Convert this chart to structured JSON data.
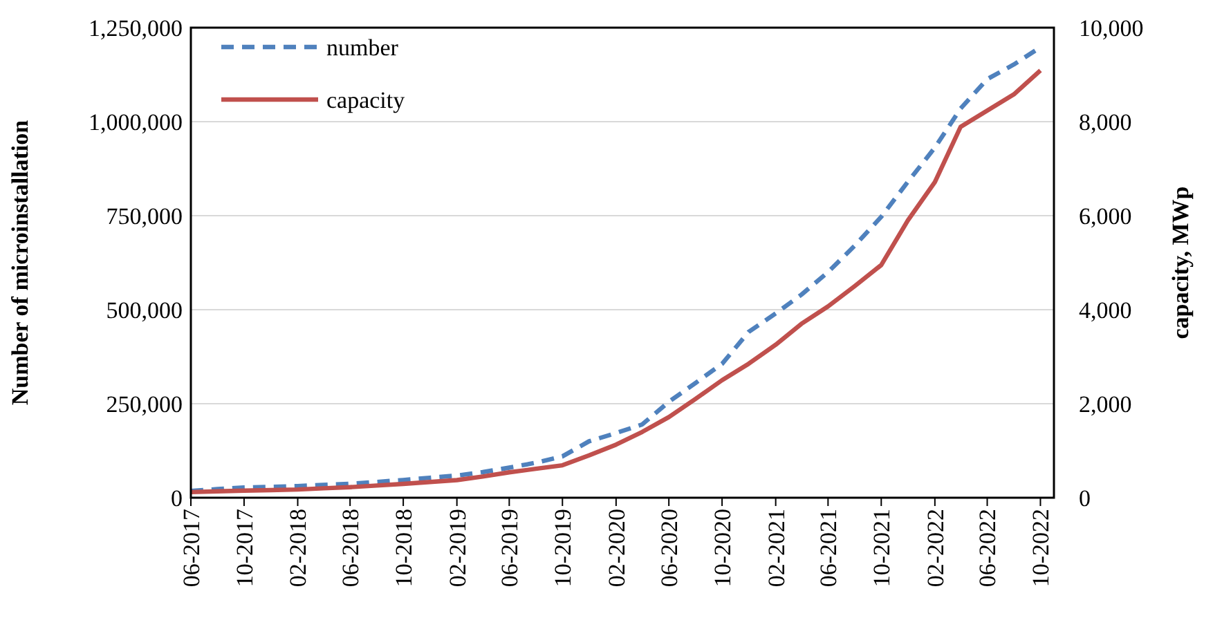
{
  "chart_data": {
    "type": "line",
    "xlabel": null,
    "ylabel": "Number of microinstallation",
    "y2label": "capacity, MWp",
    "x": [
      "2017-06",
      "2017-08",
      "2017-10",
      "2017-12",
      "2018-02",
      "2018-04",
      "2018-06",
      "2018-08",
      "2018-10",
      "2018-12",
      "2019-02",
      "2019-04",
      "2019-06",
      "2019-08",
      "2019-10",
      "2019-12",
      "2020-02",
      "2020-04",
      "2020-06",
      "2020-08",
      "2020-10",
      "2020-12",
      "2021-02",
      "2021-04",
      "2021-06",
      "2021-08",
      "2021-10",
      "2021-12",
      "2022-02",
      "2022-04",
      "2022-06",
      "2022-08",
      "2022-10"
    ],
    "series": [
      {
        "name": "number",
        "color": "#4f81bd",
        "line_style": "dashed",
        "values": [
          18000,
          23000,
          27000,
          29000,
          31000,
          34000,
          37000,
          42000,
          47000,
          53000,
          59000,
          68000,
          80000,
          93000,
          110000,
          150000,
          172000,
          195000,
          255000,
          305000,
          356000,
          441000,
          490000,
          540000,
          600000,
          670000,
          747000,
          840000,
          931000,
          1035000,
          1113000,
          1152000,
          1198000
        ]
      },
      {
        "name": "capacity",
        "color": "#c0504d",
        "line_style": "solid",
        "axis": "y2",
        "values": [
          120,
          135,
          150,
          162,
          175,
          200,
          225,
          260,
          295,
          335,
          375,
          450,
          540,
          615,
          690,
          900,
          1130,
          1400,
          1715,
          2100,
          2500,
          2850,
          3255,
          3700,
          4070,
          4500,
          4950,
          5900,
          6715,
          7890,
          8235,
          8580,
          9090
        ]
      }
    ],
    "xlim": [
      "2017-06",
      "2022-11"
    ],
    "xticks": [
      {
        "value": "2017-06",
        "label": "06-2017"
      },
      {
        "value": "2017-10",
        "label": "10-2017"
      },
      {
        "value": "2018-02",
        "label": "02-2018"
      },
      {
        "value": "2018-06",
        "label": "06-2018"
      },
      {
        "value": "2018-10",
        "label": "10-2018"
      },
      {
        "value": "2019-02",
        "label": "02-2019"
      },
      {
        "value": "2019-06",
        "label": "06-2019"
      },
      {
        "value": "2019-10",
        "label": "10-2019"
      },
      {
        "value": "2020-02",
        "label": "02-2020"
      },
      {
        "value": "2020-06",
        "label": "06-2020"
      },
      {
        "value": "2020-10",
        "label": "10-2020"
      },
      {
        "value": "2021-02",
        "label": "02-2021"
      },
      {
        "value": "2021-06",
        "label": "06-2021"
      },
      {
        "value": "2021-10",
        "label": "10-2021"
      },
      {
        "value": "2022-02",
        "label": "02-2022"
      },
      {
        "value": "2022-06",
        "label": "06-2022"
      },
      {
        "value": "2022-10",
        "label": "10-2022"
      }
    ],
    "ylim": [
      0,
      1250000
    ],
    "yticks": [
      {
        "value": 0,
        "label": "0"
      },
      {
        "value": 250000,
        "label": "250,000"
      },
      {
        "value": 500000,
        "label": "500,000"
      },
      {
        "value": 750000,
        "label": "750,000"
      },
      {
        "value": 1000000,
        "label": "1,000,000"
      },
      {
        "value": 1250000,
        "label": "1,250,000"
      }
    ],
    "y2lim": [
      0,
      10000
    ],
    "y2ticks": [
      {
        "value": 0,
        "label": "0"
      },
      {
        "value": 2000,
        "label": "2,000"
      },
      {
        "value": 4000,
        "label": "4,000"
      },
      {
        "value": 6000,
        "label": "6,000"
      },
      {
        "value": 8000,
        "label": "8,000"
      },
      {
        "value": 10000,
        "label": "10,000"
      }
    ],
    "grid": "y",
    "legend": "top left",
    "marker": "none"
  }
}
